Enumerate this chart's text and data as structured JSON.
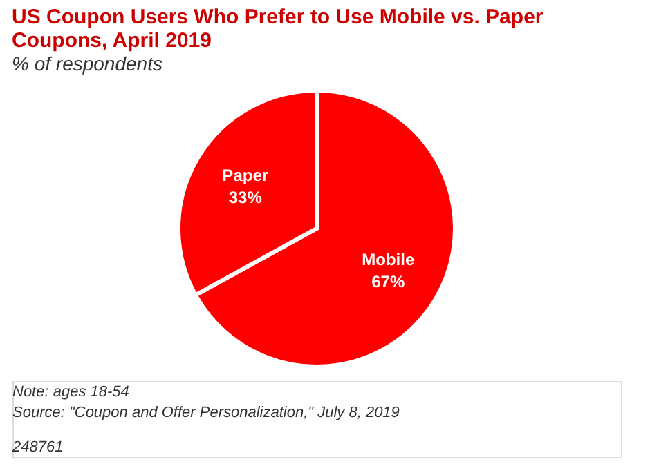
{
  "chart_data": {
    "type": "pie",
    "title": "US Coupon Users Who Prefer to Use Mobile vs. Paper Coupons, April 2019",
    "subtitle": "% of respondents",
    "categories": [
      "Mobile",
      "Paper"
    ],
    "values": [
      67,
      33
    ],
    "colors": [
      "#ff0000",
      "#ff0000"
    ],
    "value_labels": [
      "67%",
      "33%"
    ],
    "annotations": [
      "Note: ages 18-54",
      "Source: \"Coupon and Offer Personalization,\" July 8, 2019",
      "248761"
    ]
  }
}
